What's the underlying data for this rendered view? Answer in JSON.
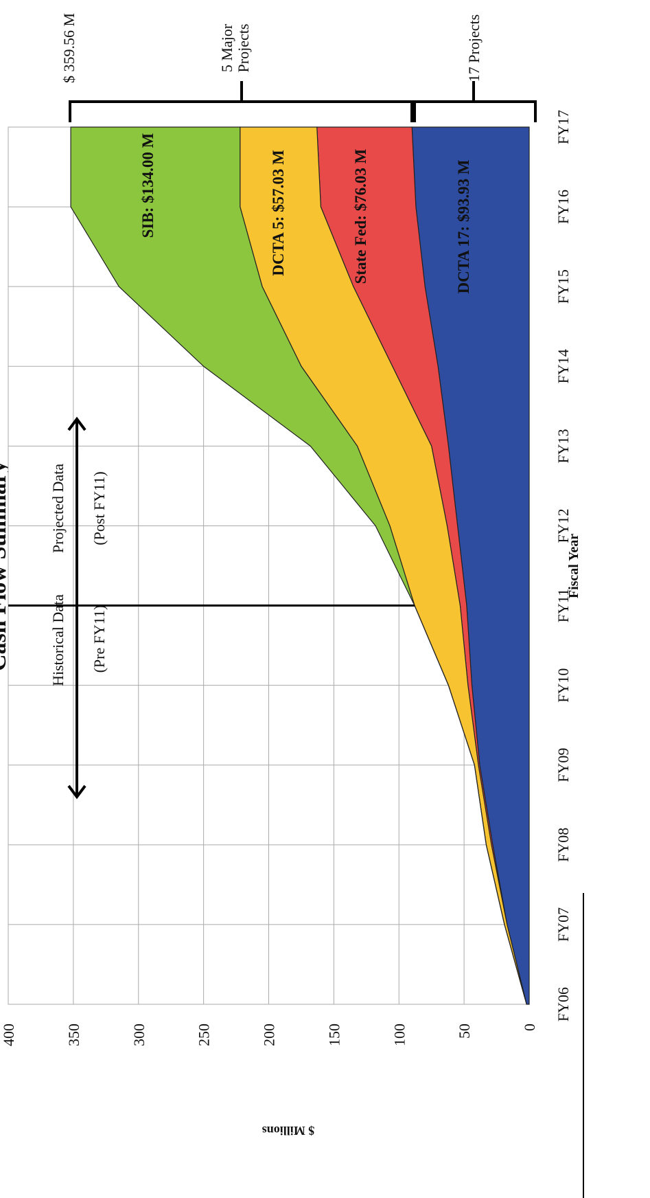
{
  "chart_data": {
    "type": "stacked-area",
    "title": "Cash Flow Summary",
    "x_label": "Fiscal Year",
    "y_label": "$ Millions",
    "categories": [
      "FY06",
      "FY07",
      "FY08",
      "FY09",
      "FY10",
      "FY11",
      "FY12",
      "FY13",
      "FY14",
      "FY15",
      "FY16",
      "FY17"
    ],
    "series": [
      {
        "name": "DCTA 17: $93.93 M",
        "color": "#2e4da0",
        "values": [
          2,
          17,
          28,
          38,
          44,
          48,
          55,
          62,
          70,
          80,
          87,
          90
        ]
      },
      {
        "name": "State Fed: $76.03 M",
        "color": "#e84a4a",
        "values": [
          0,
          0,
          1,
          1,
          3,
          5,
          8,
          13,
          35,
          55,
          73,
          73
        ]
      },
      {
        "name": "DCTA 5: $57.03 M",
        "color": "#f7c331",
        "values": [
          0,
          2,
          4,
          3,
          15,
          35,
          44,
          57,
          70,
          70,
          62,
          59
        ]
      },
      {
        "name": "SIB: $134.00 M",
        "color": "#8cc63f",
        "values": [
          0,
          0,
          0,
          0,
          0,
          0,
          11,
          36,
          75,
          110,
          130,
          130
        ]
      }
    ],
    "ylim": [
      0,
      400
    ],
    "yticks": [
      0,
      50,
      100,
      150,
      200,
      250,
      300,
      350,
      400
    ],
    "grid": true,
    "annotations": [
      "$ 359.56 M",
      "5 Major",
      "Projects",
      "17 Projects",
      "Historical Data",
      "(Pre FY11)",
      "Projected Data",
      "(Post FY11)"
    ]
  }
}
